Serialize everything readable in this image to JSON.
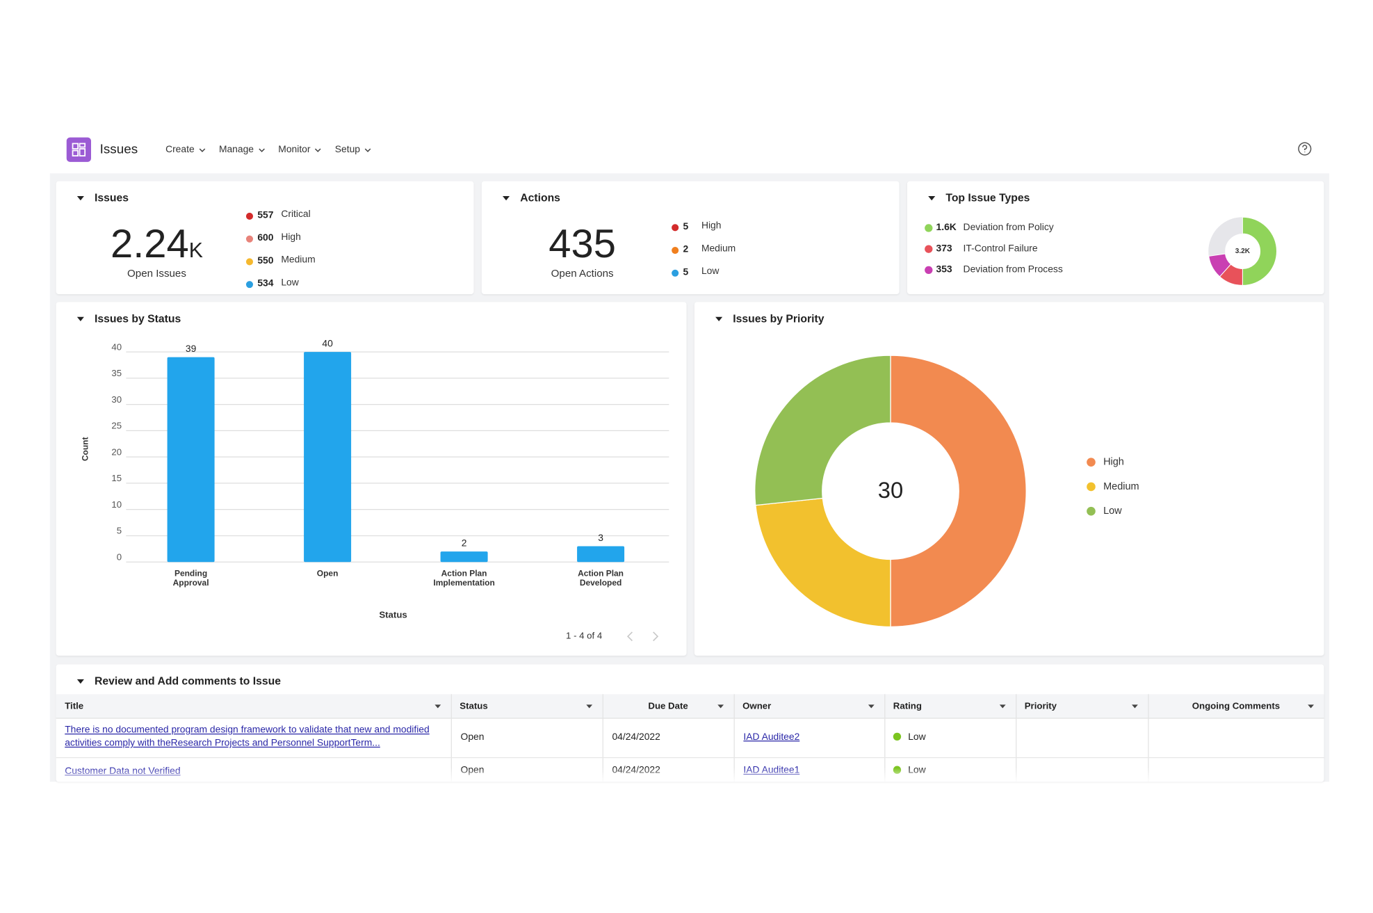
{
  "header": {
    "title": "Issues",
    "menu": [
      "Create",
      "Manage",
      "Monitor",
      "Setup"
    ]
  },
  "issues_summary": {
    "title": "Issues",
    "value": "2.24",
    "unit": "K",
    "label": "Open Issues",
    "breakdown": [
      {
        "count": 557,
        "name": "Critical",
        "color": "#d32b2b"
      },
      {
        "count": 600,
        "name": "High",
        "color": "#e8837a"
      },
      {
        "count": 550,
        "name": "Medium",
        "color": "#f5b82e"
      },
      {
        "count": 534,
        "name": "Low",
        "color": "#2b9fe0"
      }
    ]
  },
  "actions_summary": {
    "title": "Actions",
    "value": 435,
    "label": "Open Actions",
    "breakdown": [
      {
        "count": 5,
        "name": "High",
        "color": "#d32b2b"
      },
      {
        "count": 2,
        "name": "Medium",
        "color": "#f07f1e"
      },
      {
        "count": 5,
        "name": "Low",
        "color": "#2b9fe0"
      }
    ]
  },
  "top_issue_types": {
    "title": "Top Issue Types",
    "total": {
      "value": 3200,
      "label": "3.2K"
    },
    "rest_color": "#e6e6ea",
    "types": [
      {
        "count": {
          "value": 1600,
          "label": "1.6K"
        },
        "name": "Deviation from Policy",
        "color": "#90d45a"
      },
      {
        "count": 373,
        "name": "IT-Control Failure",
        "color": "#e8525a"
      },
      {
        "count": 353,
        "name": "Deviation from Process",
        "color": "#c93fb2"
      }
    ]
  },
  "chart_data": [
    {
      "type": "bar",
      "title": "Issues by Status",
      "categories": [
        "Pending Approval",
        "Open",
        "Action Plan Implementation",
        "Action Plan Developed"
      ],
      "values": [
        39,
        40,
        2,
        3
      ],
      "color": "#22a5ec",
      "ylim": [
        0,
        40
      ],
      "yticks": [
        0,
        5,
        10,
        15,
        20,
        25,
        30,
        35,
        40
      ],
      "xlabel": "Status",
      "ylabel": "Count",
      "grid": true,
      "pagination": "1 - 4 of 4"
    },
    {
      "type": "pie",
      "title": "Issues by Priority",
      "categories": [
        "High",
        "Medium",
        "Low"
      ],
      "values": [
        15,
        7,
        8
      ],
      "colors": [
        "#f28a50",
        "#f2c12e",
        "#93bf54"
      ],
      "total": 30,
      "legend": "right"
    }
  ],
  "comments_table": {
    "title": "Review and Add comments to Issue",
    "columns": [
      "Title",
      "Status",
      "Due Date",
      "Owner",
      "Rating",
      "Priority",
      "Ongoing Comments"
    ],
    "rows": [
      {
        "title": "There is no documented program design framework to validate that new and modified activities comply with theResearch Projects and Personnel SupportTerm...",
        "status": "Open",
        "due_date": "04/24/2022",
        "owner": "IAD Auditee2",
        "rating": "Low"
      },
      {
        "title": "Customer Data not Verified",
        "status": "Open",
        "due_date": "04/24/2022",
        "owner": "IAD Auditee1",
        "rating": "Low"
      }
    ]
  }
}
